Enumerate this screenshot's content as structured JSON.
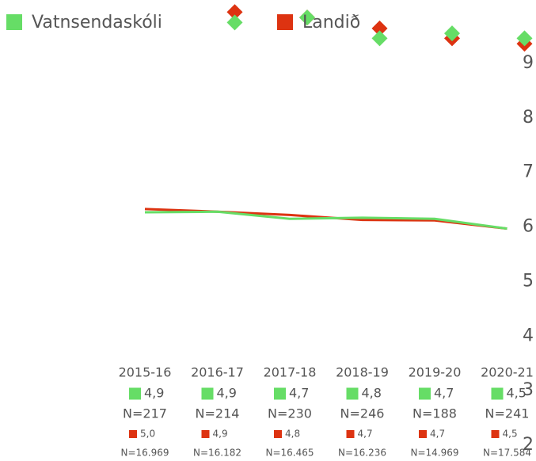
{
  "chart_data": {
    "type": "line",
    "categories": [
      "2015-16",
      "2016-17",
      "2017-18",
      "2018-19",
      "2019-20",
      "2020-21"
    ],
    "ylim": [
      2,
      9
    ],
    "yticks": [
      2,
      3,
      4,
      5,
      6,
      7,
      8,
      9
    ],
    "series": [
      {
        "name": "Vatnsendaskóli",
        "color": "#66dd66",
        "values": [
          6.27,
          6.28,
          6.15,
          6.17,
          6.15,
          5.97
        ],
        "marker_values": [
          null,
          9.75,
          9.84,
          9.46,
          9.55,
          9.46
        ],
        "score_labels": [
          "4,9",
          "4,9",
          "4,7",
          "4,8",
          "4,7",
          "4,5"
        ],
        "n_labels": [
          "N=217",
          "N=214",
          "N=230",
          "N=246",
          "N=188",
          "N=241"
        ]
      },
      {
        "name": "Landið",
        "color": "#dd3311",
        "values": [
          6.33,
          6.28,
          6.22,
          6.13,
          6.12,
          5.97
        ],
        "marker_values": [
          null,
          9.94,
          9.84,
          9.64,
          9.46,
          9.36
        ],
        "score_labels": [
          "5,0",
          "4,9",
          "4,8",
          "4,7",
          "4,7",
          "4,5"
        ],
        "n_labels": [
          "N=16.969",
          "N=16.182",
          "N=16.465",
          "N=16.236",
          "N=14.969",
          "N=17.584"
        ]
      }
    ]
  }
}
